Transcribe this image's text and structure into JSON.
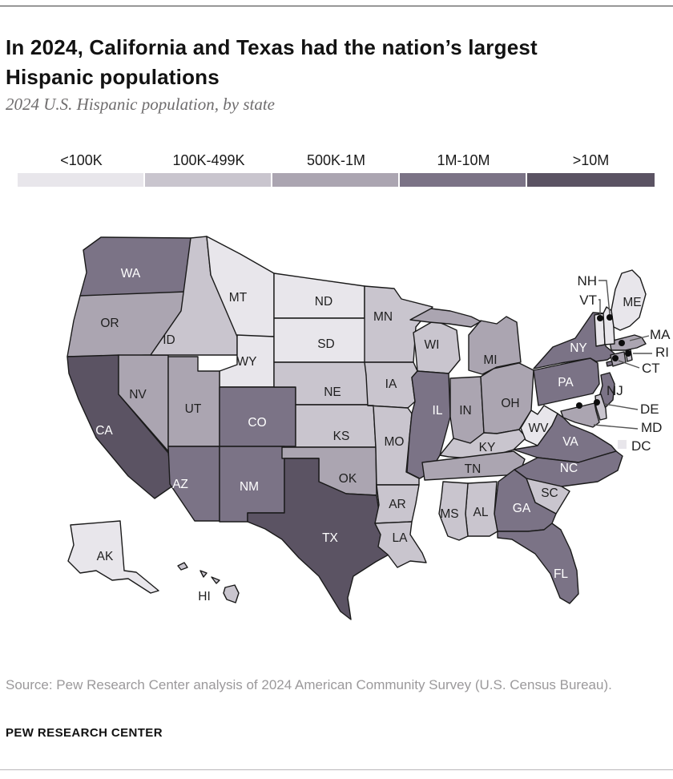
{
  "header": {
    "title": "In 2024, California and Texas had the nation’s largest Hispanic populations",
    "subtitle": "2024 U.S. Hispanic population, by state"
  },
  "legend": {
    "bins": [
      {
        "label": "<100K",
        "color": "#e8e6eb"
      },
      {
        "label": "100K-499K",
        "color": "#c9c5ce"
      },
      {
        "label": "500K-1M",
        "color": "#aba5b1"
      },
      {
        "label": "1M-10M",
        "color": "#7b7386"
      },
      {
        "label": ">10M",
        "color": "#5b5363"
      }
    ]
  },
  "map": {
    "border_color": "#1a1a1a",
    "label_color_dark_states": "#ffffff",
    "label_color_light_states": "#1f1f1f",
    "external_labels": [
      "NH",
      "VT",
      "MA",
      "RI",
      "CT",
      "NJ",
      "DE",
      "MD",
      "DC"
    ]
  },
  "chart_data": {
    "type": "heatmap",
    "subtype": "us-state-choropleth",
    "title": "2024 U.S. Hispanic population, by state",
    "bins": [
      "<100K",
      "100K-499K",
      "500K-1M",
      "1M-10M",
      ">10M"
    ],
    "bin_colors": [
      "#e8e6eb",
      "#c9c5ce",
      "#aba5b1",
      "#7b7386",
      "#5b5363"
    ],
    "legend_position": "top",
    "states": {
      "WA": "1M-10M",
      "OR": "500K-1M",
      "CA": ">10M",
      "NV": "500K-1M",
      "ID": "100K-499K",
      "MT": "<100K",
      "WY": "<100K",
      "UT": "500K-1M",
      "CO": "1M-10M",
      "AZ": "1M-10M",
      "NM": "1M-10M",
      "ND": "<100K",
      "SD": "<100K",
      "NE": "100K-499K",
      "KS": "100K-499K",
      "OK": "500K-1M",
      "TX": ">10M",
      "MN": "100K-499K",
      "IA": "100K-499K",
      "WI": "100K-499K",
      "MO": "100K-499K",
      "AR": "100K-499K",
      "LA": "100K-499K",
      "IL": "1M-10M",
      "IN": "500K-1M",
      "OH": "500K-1M",
      "MI": "500K-1M",
      "KY": "100K-499K",
      "TN": "500K-1M",
      "WV": "<100K",
      "VA": "1M-10M",
      "NC": "1M-10M",
      "SC": "100K-499K",
      "GA": "1M-10M",
      "AL": "100K-499K",
      "MS": "100K-499K",
      "FL": "1M-10M",
      "PA": "1M-10M",
      "NY": "1M-10M",
      "NJ": "1M-10M",
      "MD": "500K-1M",
      "DE": "100K-499K",
      "CT": "500K-1M",
      "RI": "100K-499K",
      "MA": "500K-1M",
      "VT": "<100K",
      "NH": "<100K",
      "ME": "<100K",
      "AK": "<100K",
      "HI": "100K-499K",
      "DC": "<100K"
    }
  },
  "footer": {
    "source_text": "Source: Pew Research Center analysis of 2024 American Community Survey (U.S. Census Bureau).",
    "brand": "PEW RESEARCH CENTER"
  }
}
